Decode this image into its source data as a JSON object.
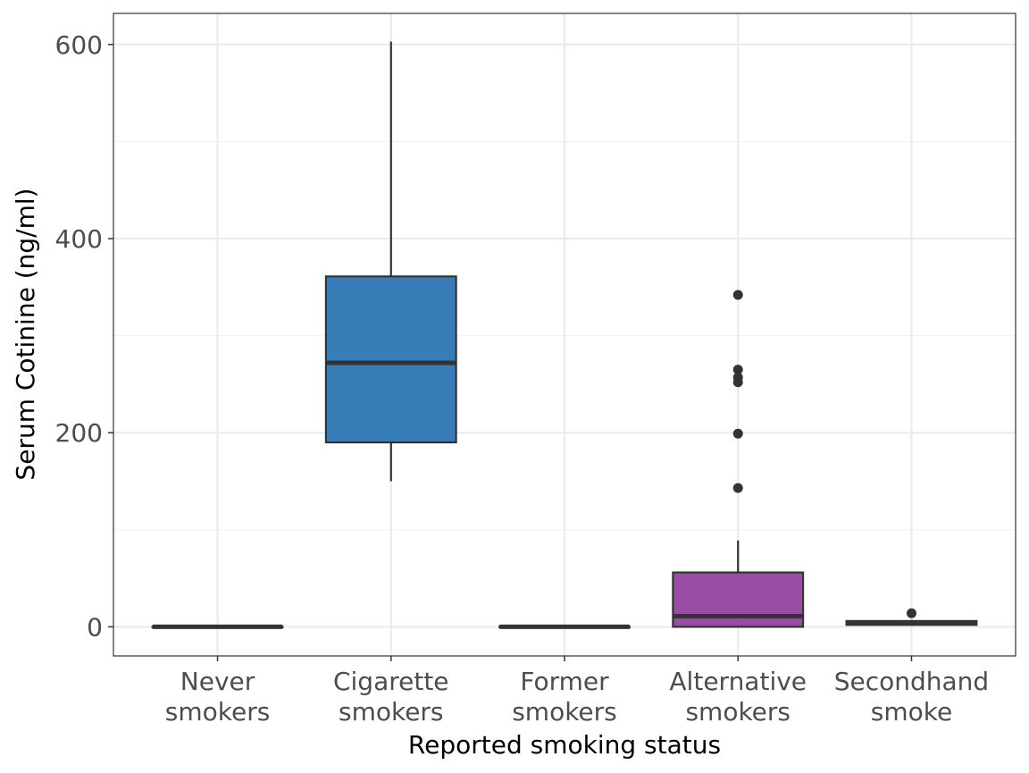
{
  "chart_data": {
    "type": "boxplot",
    "xlabel": "Reported smoking status",
    "ylabel": "Serum Cotinine (ng/ml)",
    "ylim": [
      -30,
      632
    ],
    "yticks": [
      0,
      200,
      400,
      600
    ],
    "grid": true,
    "categories": [
      {
        "lines": [
          "Never",
          "smokers"
        ],
        "color": "#999999",
        "min": 0,
        "q1": 0,
        "median": 0,
        "q3": 0,
        "max": 0,
        "outliers": []
      },
      {
        "lines": [
          "Cigarette",
          "smokers"
        ],
        "color": "#377EB8",
        "min": 150,
        "q1": 190,
        "median": 272,
        "q3": 361,
        "max": 603,
        "outliers": []
      },
      {
        "lines": [
          "Former",
          "smokers"
        ],
        "color": "#999999",
        "min": 0,
        "q1": 0,
        "median": 0,
        "q3": 0,
        "max": 0,
        "outliers": []
      },
      {
        "lines": [
          "Alternative",
          "smokers"
        ],
        "color": "#984EA3",
        "min": 0,
        "q1": 0,
        "median": 11,
        "q3": 56,
        "max": 89,
        "outliers": [
          143,
          199,
          252,
          257,
          265,
          342
        ]
      },
      {
        "lines": [
          "Secondhand",
          "smoke"
        ],
        "color": "#999999",
        "min": 1,
        "q1": 2,
        "median": 4,
        "q3": 6,
        "max": 7,
        "outliers": [
          14
        ]
      }
    ]
  }
}
